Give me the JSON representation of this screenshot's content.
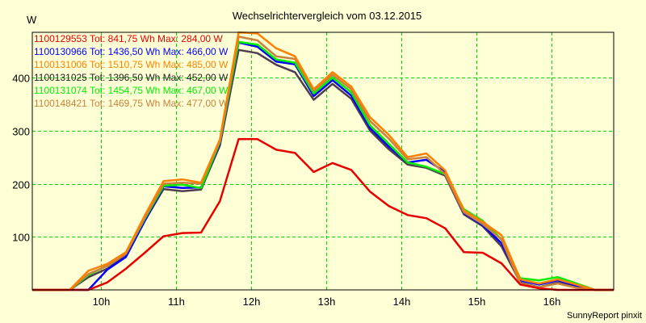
{
  "chart_data": {
    "type": "line",
    "title": "Wechselrichtervergleich vom 03.12.2015",
    "ylabel": "W",
    "xlabel": "",
    "ylim": [
      0,
      490
    ],
    "yticks": [
      100,
      200,
      300,
      400
    ],
    "xticks": [
      "10h",
      "11h",
      "12h",
      "13h",
      "14h",
      "15h",
      "16h"
    ],
    "grid": true,
    "legend_position": "top-left-inside",
    "footer": "SunnyReport pinxit",
    "x": [
      "09:35",
      "09:50",
      "10:05",
      "10:20",
      "10:35",
      "10:50",
      "11:05",
      "11:20",
      "11:35",
      "11:50",
      "12:05",
      "12:20",
      "12:35",
      "12:50",
      "13:05",
      "13:20",
      "13:35",
      "13:50",
      "14:05",
      "14:20",
      "14:35",
      "14:50",
      "15:05",
      "15:20",
      "15:35",
      "15:50",
      "16:05",
      "16:20",
      "16:35"
    ],
    "series": [
      {
        "name": "1100129553",
        "label": "1100129553 Tot: 841,75 Wh Max: 284,00 W",
        "color": "#e80000",
        "values": [
          0,
          0,
          14,
          40,
          70,
          101,
          107,
          108,
          167,
          284,
          284,
          264,
          258,
          222,
          239,
          226,
          185,
          158,
          141,
          135,
          116,
          71,
          70,
          50,
          10,
          3,
          0,
          0,
          0
        ]
      },
      {
        "name": "1100130966",
        "label": "1100130966 Tot: 1436,50 Wh Max: 466,00 W",
        "color": "#0000ff",
        "values": [
          0,
          0,
          38,
          62,
          130,
          195,
          192,
          193,
          275,
          466,
          458,
          430,
          425,
          365,
          395,
          366,
          305,
          270,
          240,
          245,
          222,
          145,
          122,
          88,
          18,
          10,
          18,
          8,
          0
        ]
      },
      {
        "name": "1100131006",
        "label": "1100131006 Tot: 1510,75 Wh Max: 485,00 W",
        "color": "#ff8000",
        "values": [
          0,
          36,
          49,
          71,
          140,
          205,
          208,
          202,
          283,
          485,
          483,
          455,
          440,
          378,
          410,
          383,
          325,
          292,
          250,
          257,
          225,
          150,
          128,
          103,
          20,
          12,
          20,
          10,
          0
        ]
      },
      {
        "name": "1100131025",
        "label": "1100131025 Tot: 1396,50 Wh Max: 452,00 W",
        "color": "#503c50",
        "values": [
          0,
          24,
          40,
          64,
          130,
          190,
          186,
          189,
          272,
          452,
          446,
          424,
          410,
          358,
          388,
          360,
          300,
          265,
          236,
          230,
          215,
          142,
          120,
          82,
          14,
          5,
          14,
          5,
          0
        ]
      },
      {
        "name": "1100131074",
        "label": "1100131074 Tot: 1454,75 Wh Max: 467,00 W",
        "color": "#00ee00",
        "values": [
          0,
          28,
          46,
          68,
          134,
          196,
          198,
          192,
          278,
          467,
          462,
          434,
          428,
          370,
          400,
          372,
          310,
          275,
          240,
          232,
          218,
          152,
          130,
          95,
          22,
          18,
          24,
          12,
          0
        ]
      },
      {
        "name": "1100148421",
        "label": "1100148421 Tot: 1469,75 Wh Max: 477,00 W",
        "color": "#c8823c",
        "values": [
          0,
          30,
          45,
          68,
          136,
          200,
          202,
          200,
          280,
          477,
          470,
          440,
          435,
          375,
          405,
          378,
          318,
          285,
          246,
          250,
          218,
          146,
          124,
          95,
          12,
          5,
          12,
          4,
          0
        ]
      }
    ]
  }
}
